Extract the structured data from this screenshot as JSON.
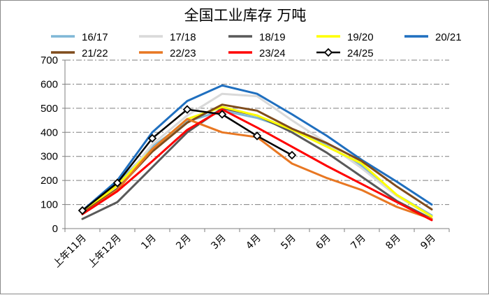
{
  "chart_data": {
    "type": "line",
    "title": "全国工业库存 万吨",
    "xlabel": "",
    "ylabel": "",
    "ylim": [
      0,
      700
    ],
    "yticks": [
      0,
      100,
      200,
      300,
      400,
      500,
      600,
      700
    ],
    "grid": true,
    "legend_position": "top",
    "categories": [
      "上年11月",
      "上年12月",
      "1月",
      "2月",
      "3月",
      "4月",
      "5月",
      "6月",
      "7月",
      "8月",
      "9月"
    ],
    "series": [
      {
        "name": "16/17",
        "color": "#7fb7d6",
        "marker": "none",
        "values": [
          60,
          185,
          340,
          445,
          490,
          460,
          410,
          345,
          260,
          140,
          55
        ]
      },
      {
        "name": "17/18",
        "color": "#d9d9d9",
        "marker": "none",
        "values": [
          65,
          170,
          350,
          470,
          560,
          550,
          450,
          355,
          250,
          135,
          50
        ]
      },
      {
        "name": "18/19",
        "color": "#595959",
        "marker": "none",
        "values": [
          40,
          110,
          255,
          400,
          500,
          470,
          400,
          315,
          215,
          115,
          40
        ]
      },
      {
        "name": "19/20",
        "color": "#ffff00",
        "marker": "none",
        "values": [
          65,
          180,
          330,
          455,
          505,
          470,
          410,
          340,
          270,
          140,
          50
        ]
      },
      {
        "name": "20/21",
        "color": "#1f6fbf",
        "marker": "none",
        "values": [
          75,
          200,
          400,
          530,
          595,
          560,
          475,
          385,
          285,
          195,
          100
        ]
      },
      {
        "name": "21/22",
        "color": "#7f4c1c",
        "marker": "none",
        "values": [
          65,
          165,
          320,
          440,
          515,
          490,
          415,
          355,
          280,
          175,
          80
        ]
      },
      {
        "name": "22/23",
        "color": "#e87722",
        "marker": "none",
        "values": [
          60,
          160,
          330,
          455,
          400,
          380,
          270,
          210,
          160,
          90,
          40
        ]
      },
      {
        "name": "23/24",
        "color": "#ff0000",
        "marker": "none",
        "values": [
          60,
          155,
          280,
          410,
          495,
          420,
          340,
          260,
          185,
          110,
          35
        ]
      },
      {
        "name": "24/25",
        "color": "#000000",
        "marker": "diamond",
        "values": [
          75,
          190,
          375,
          495,
          475,
          385,
          305,
          null,
          null,
          null,
          null
        ]
      }
    ]
  }
}
